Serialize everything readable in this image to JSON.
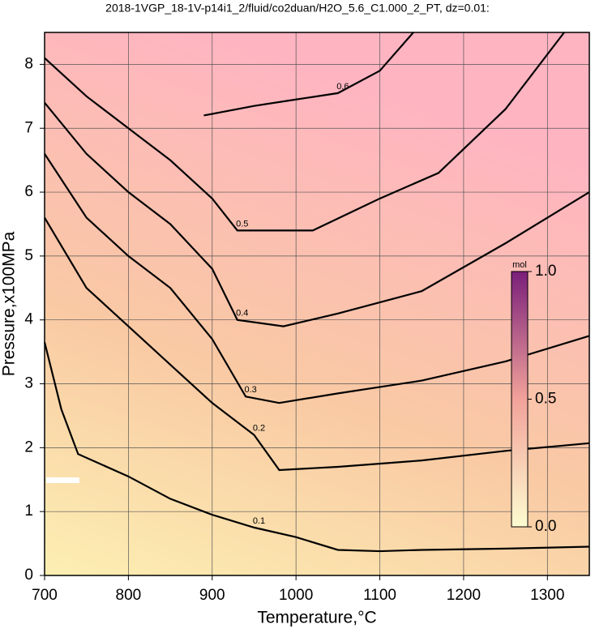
{
  "chart_data": {
    "type": "contour",
    "title": "2018-1VGP_18-1V-p14i1_2/fluid/co2duan/H2O_5.6_C1.000_2_PT, dz=0.01:",
    "xlabel": "Temperature,°C",
    "ylabel": "Pressure,x100MPa",
    "xlim": [
      700,
      1350
    ],
    "ylim": [
      0,
      8.5
    ],
    "xticks": [
      700,
      800,
      900,
      1000,
      1100,
      1200,
      1300
    ],
    "yticks": [
      0,
      1,
      2,
      3,
      4,
      5,
      6,
      7,
      8
    ],
    "grid": true,
    "line_color": "#000000",
    "contours": [
      {
        "level": 0.1,
        "x": [
          700,
          720,
          740,
          800,
          850,
          900,
          950,
          1000,
          1050,
          1100,
          1150,
          1250,
          1350
        ],
        "y": [
          3.65,
          2.6,
          1.9,
          1.55,
          1.2,
          0.95,
          0.75,
          0.6,
          0.4,
          0.38,
          0.4,
          0.42,
          0.45
        ]
      },
      {
        "level": 0.2,
        "x": [
          700,
          750,
          800,
          850,
          900,
          950,
          980,
          1050,
          1150,
          1250,
          1350
        ],
        "y": [
          5.6,
          4.5,
          3.9,
          3.3,
          2.7,
          2.2,
          1.65,
          1.7,
          1.8,
          1.95,
          2.07
        ]
      },
      {
        "level": 0.3,
        "x": [
          700,
          750,
          800,
          850,
          900,
          940,
          980,
          1050,
          1150,
          1250,
          1350
        ],
        "y": [
          6.6,
          5.6,
          5.0,
          4.5,
          3.7,
          2.8,
          2.7,
          2.85,
          3.05,
          3.35,
          3.75
        ]
      },
      {
        "level": 0.4,
        "x": [
          700,
          750,
          800,
          850,
          900,
          930,
          985,
          1050,
          1150,
          1250,
          1350
        ],
        "y": [
          7.4,
          6.6,
          6.0,
          5.5,
          4.8,
          4.0,
          3.9,
          4.1,
          4.45,
          5.2,
          6.0
        ]
      },
      {
        "level": 0.5,
        "x": [
          700,
          750,
          800,
          850,
          900,
          930,
          1020,
          1100,
          1170,
          1250,
          1320
        ],
        "y": [
          8.1,
          7.5,
          7.0,
          6.5,
          5.9,
          5.4,
          5.4,
          5.9,
          6.3,
          7.3,
          8.5
        ]
      },
      {
        "level": 0.6,
        "x": [
          890,
          950,
          1000,
          1050,
          1100,
          1140
        ],
        "y": [
          7.2,
          7.35,
          7.45,
          7.55,
          7.9,
          8.5
        ]
      }
    ],
    "colorbar": {
      "label": "mol",
      "lim": [
        0,
        1
      ],
      "colors": [
        "#fdfcd0",
        "#f2a29a",
        "#7a1f7a"
      ],
      "ticks": [
        {
          "value": 0,
          "label": "0.0"
        },
        {
          "value": 0.5,
          "label": "0.5"
        },
        {
          "value": 1,
          "label": "1.0"
        }
      ]
    }
  }
}
